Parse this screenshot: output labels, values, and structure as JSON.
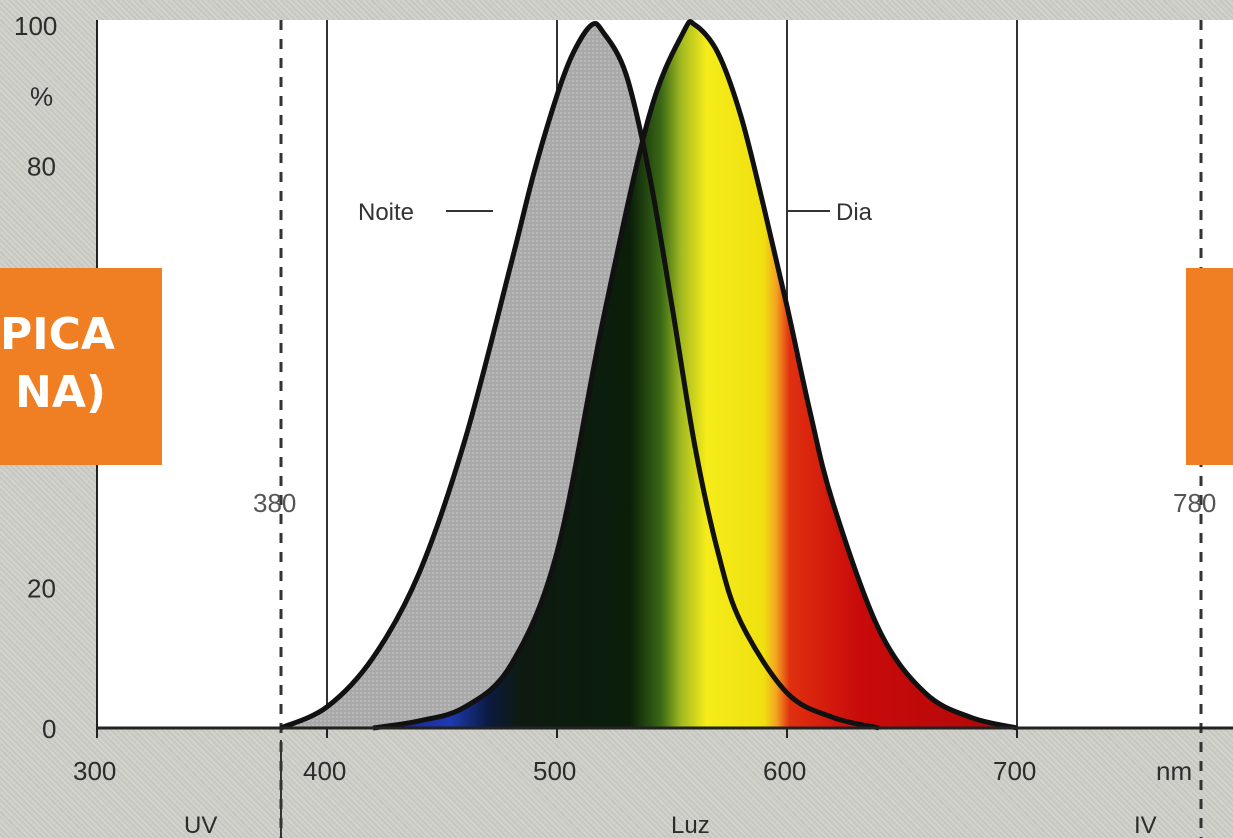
{
  "chart_data": {
    "type": "area",
    "title": "",
    "xlabel": "nm",
    "ylabel": "%",
    "xlim": [
      300,
      800
    ],
    "ylim": [
      0,
      100
    ],
    "x_ticks": [
      300,
      400,
      500,
      600,
      700
    ],
    "y_ticks": [
      0,
      20,
      80,
      100
    ],
    "y_unit_label": "%",
    "x_unit_label": "nm",
    "vertical_lines": [
      400,
      500,
      600,
      700
    ],
    "dashed_markers": [
      {
        "x": 380,
        "label": "380"
      },
      {
        "x": 780,
        "label": "780"
      }
    ],
    "bands": [
      {
        "label": "UV"
      },
      {
        "label": "Luz"
      },
      {
        "label": "IV"
      }
    ],
    "series": [
      {
        "name": "Noite",
        "fill": "#a8a8a8",
        "x": [
          380,
          400,
          420,
          440,
          460,
          480,
          490,
          500,
          507,
          515,
          520,
          530,
          540,
          550,
          560,
          570,
          580,
          600,
          620,
          640
        ],
        "y": [
          0,
          3,
          10,
          22,
          41,
          66,
          79,
          90,
          96,
          100,
          99,
          93,
          79,
          60,
          40,
          25,
          15,
          5,
          1.5,
          0
        ]
      },
      {
        "name": "Dia",
        "fill": "spectrum",
        "x": [
          420,
          440,
          460,
          480,
          500,
          520,
          540,
          555,
          560,
          570,
          580,
          590,
          600,
          610,
          620,
          640,
          660,
          680,
          700
        ],
        "y": [
          0,
          1,
          3,
          9,
          25,
          58,
          87,
          99,
          100,
          96,
          87,
          74,
          60,
          45,
          32,
          14,
          5,
          1.5,
          0
        ]
      }
    ]
  },
  "overlays": {
    "left_line1": "PICA",
    "left_line2": "NA)"
  }
}
